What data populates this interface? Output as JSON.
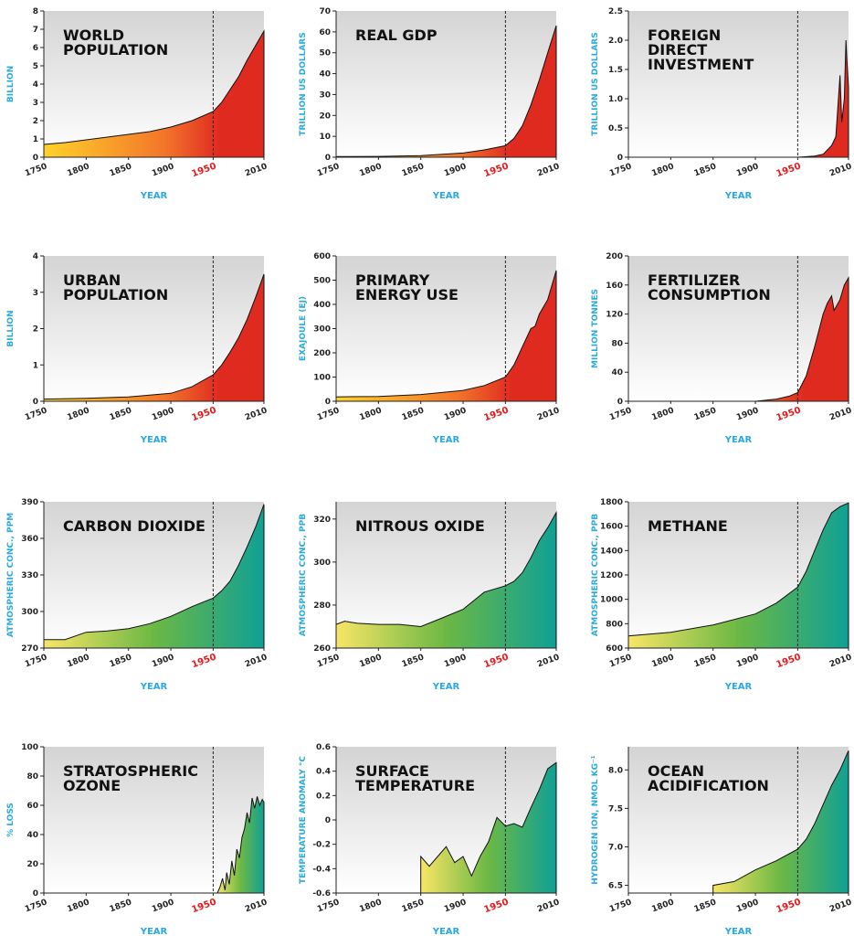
{
  "colors": {
    "axis_text": "#29a9df",
    "highlight_year": "#e11a1a",
    "bg_light": "#ffffff",
    "bg_dark": "#d4d4d4",
    "socio_start": "#ffd22a",
    "socio_mid": "#f3752a",
    "socio_end": "#df2a20",
    "earth_start": "#f8e566",
    "earth_mid": "#6bb844",
    "earth_end": "#10a095"
  },
  "shared": {
    "xlabel": "YEAR",
    "x_ticks": [
      "1750",
      "1800",
      "1850",
      "1900",
      "1950",
      "2010"
    ],
    "marker_year": 1950,
    "xlim": [
      1750,
      2010
    ]
  },
  "chart_data": [
    {
      "type": "area",
      "panel": "socio",
      "title_lines": [
        "WORLD",
        "POPULATION"
      ],
      "ylabel": "BILLION",
      "ylim": [
        0,
        8
      ],
      "y_ticks": [
        "0",
        "1",
        "2",
        "3",
        "4",
        "5",
        "6",
        "7",
        "8"
      ],
      "x": [
        1750,
        1775,
        1800,
        1825,
        1850,
        1875,
        1900,
        1925,
        1950,
        1960,
        1970,
        1980,
        1990,
        2000,
        2010
      ],
      "y": [
        0.7,
        0.8,
        0.95,
        1.1,
        1.25,
        1.4,
        1.65,
        2.0,
        2.5,
        3.0,
        3.7,
        4.4,
        5.3,
        6.1,
        6.9
      ]
    },
    {
      "type": "area",
      "panel": "socio",
      "title_lines": [
        "REAL GDP"
      ],
      "ylabel": "TRILLION US DOLLARS",
      "ylim": [
        0,
        70
      ],
      "y_ticks": [
        "0",
        "10",
        "20",
        "30",
        "40",
        "50",
        "60",
        "70"
      ],
      "x": [
        1750,
        1800,
        1850,
        1900,
        1925,
        1950,
        1960,
        1970,
        1980,
        1990,
        2000,
        2010
      ],
      "y": [
        0.3,
        0.4,
        0.8,
        2.0,
        3.5,
        5.5,
        9.0,
        15.0,
        25.0,
        37.0,
        50.0,
        63.0
      ]
    },
    {
      "type": "area",
      "panel": "socio",
      "title_lines": [
        "FOREIGN",
        "DIRECT",
        "INVESTMENT"
      ],
      "ylabel": "TRILLION US DOLLARS",
      "ylim": [
        0,
        2.5
      ],
      "y_ticks": [
        "0",
        "0.5",
        "1.0",
        "1.5",
        "2.0",
        "2.5"
      ],
      "x": [
        1750,
        1950,
        1970,
        1980,
        1990,
        1995,
        2000,
        2002,
        2005,
        2007,
        2008,
        2010
      ],
      "y": [
        0,
        0,
        0.02,
        0.05,
        0.2,
        0.35,
        1.4,
        0.6,
        1.0,
        2.0,
        1.7,
        1.2
      ]
    },
    {
      "type": "area",
      "panel": "socio",
      "title_lines": [
        "URBAN",
        "POPULATION"
      ],
      "ylabel": "BILLION",
      "ylim": [
        0,
        4
      ],
      "y_ticks": [
        "0",
        "1",
        "2",
        "3",
        "4"
      ],
      "x": [
        1750,
        1800,
        1850,
        1900,
        1925,
        1950,
        1960,
        1970,
        1980,
        1990,
        2000,
        2010
      ],
      "y": [
        0.06,
        0.08,
        0.12,
        0.22,
        0.4,
        0.73,
        1.0,
        1.35,
        1.75,
        2.25,
        2.85,
        3.5
      ]
    },
    {
      "type": "area",
      "panel": "socio",
      "title_lines": [
        "PRIMARY",
        "ENERGY USE"
      ],
      "ylabel": "EXAJOULE (EJ)",
      "ylim": [
        0,
        600
      ],
      "y_ticks": [
        "0",
        "100",
        "200",
        "300",
        "400",
        "500",
        "600"
      ],
      "x": [
        1750,
        1800,
        1850,
        1900,
        1925,
        1950,
        1960,
        1970,
        1980,
        1985,
        1990,
        2000,
        2010
      ],
      "y": [
        18,
        20,
        28,
        45,
        65,
        100,
        150,
        225,
        300,
        310,
        360,
        420,
        540
      ]
    },
    {
      "type": "area",
      "panel": "socio",
      "title_lines": [
        "FERTILIZER",
        "CONSUMPTION"
      ],
      "ylabel": "MILLION TONNES",
      "ylim": [
        0,
        200
      ],
      "y_ticks": [
        "0",
        "40",
        "80",
        "120",
        "160",
        "200"
      ],
      "x": [
        1750,
        1900,
        1925,
        1940,
        1950,
        1960,
        1970,
        1980,
        1985,
        1990,
        1993,
        2000,
        2005,
        2010
      ],
      "y": [
        0,
        0,
        3,
        7,
        12,
        35,
        75,
        120,
        135,
        145,
        125,
        140,
        160,
        170
      ]
    },
    {
      "type": "area",
      "panel": "earth",
      "title_lines": [
        "CARBON DIOXIDE"
      ],
      "ylabel": "ATMOSPHERIC CONC., PPM",
      "ylim": [
        270,
        390
      ],
      "y_ticks": [
        "270",
        "300",
        "330",
        "360",
        "390"
      ],
      "x": [
        1750,
        1775,
        1800,
        1825,
        1850,
        1875,
        1900,
        1925,
        1950,
        1960,
        1970,
        1980,
        1990,
        2000,
        2010
      ],
      "y": [
        277,
        277,
        283,
        284,
        286,
        290,
        296,
        304,
        311,
        317,
        325,
        338,
        353,
        369,
        388
      ]
    },
    {
      "type": "area",
      "panel": "earth",
      "title_lines": [
        "NITROUS OXIDE"
      ],
      "ylabel": "ATMOSPHERIC CONC., PPB",
      "ylim": [
        260,
        328
      ],
      "y_ticks": [
        "260",
        "280",
        "300",
        "320"
      ],
      "x": [
        1750,
        1760,
        1775,
        1800,
        1825,
        1850,
        1875,
        1900,
        1925,
        1950,
        1960,
        1970,
        1980,
        1990,
        2000,
        2010
      ],
      "y": [
        271,
        272.5,
        271.5,
        271,
        271,
        270,
        274,
        278,
        286,
        289,
        291,
        295,
        302,
        310,
        316,
        323
      ]
    },
    {
      "type": "area",
      "panel": "earth",
      "title_lines": [
        "METHANE"
      ],
      "ylabel": "ATMOSPHERIC CONC., PPB",
      "ylim": [
        600,
        1800
      ],
      "y_ticks": [
        "600",
        "800",
        "1000",
        "1200",
        "1400",
        "1600",
        "1800"
      ],
      "x": [
        1750,
        1800,
        1850,
        1900,
        1925,
        1950,
        1960,
        1970,
        1980,
        1990,
        2000,
        2010
      ],
      "y": [
        700,
        730,
        790,
        880,
        970,
        1100,
        1230,
        1400,
        1570,
        1710,
        1760,
        1790
      ]
    },
    {
      "type": "area",
      "panel": "earth",
      "title_lines": [
        "STRATOSPHERIC",
        "OZONE"
      ],
      "ylabel": "% LOSS",
      "ylim": [
        0,
        100
      ],
      "y_ticks": [
        "0",
        "20",
        "40",
        "60",
        "80",
        "100"
      ],
      "x": [
        1955,
        1958,
        1961,
        1964,
        1966,
        1969,
        1972,
        1975,
        1978,
        1981,
        1984,
        1987,
        1990,
        1993,
        1996,
        1999,
        2002,
        2005,
        2008,
        2010
      ],
      "y": [
        0,
        4,
        10,
        2,
        14,
        6,
        22,
        12,
        30,
        24,
        38,
        44,
        55,
        48,
        65,
        58,
        66,
        60,
        64,
        62
      ]
    },
    {
      "type": "area",
      "panel": "earth",
      "title_lines": [
        "SURFACE",
        "TEMPERATURE"
      ],
      "ylabel": "TEMPERATURE ANOMALY °C",
      "ylim": [
        -0.6,
        0.6
      ],
      "y_ticks": [
        "-0.6",
        "-0.4",
        "-0.2",
        "0",
        "0.2",
        "0.4",
        "0.6"
      ],
      "x": [
        1850,
        1860,
        1870,
        1880,
        1890,
        1900,
        1910,
        1920,
        1930,
        1940,
        1950,
        1960,
        1970,
        1980,
        1990,
        2000,
        2010
      ],
      "y": [
        -0.3,
        -0.38,
        -0.3,
        -0.22,
        -0.35,
        -0.3,
        -0.46,
        -0.3,
        -0.18,
        0.02,
        -0.05,
        -0.03,
        -0.06,
        0.1,
        0.25,
        0.42,
        0.47
      ]
    },
    {
      "type": "area",
      "panel": "earth",
      "title_lines": [
        "OCEAN",
        "ACIDIFICATION"
      ],
      "ylabel": "HYDROGEN ION, NMOL KG⁻¹",
      "ylim": [
        6.4,
        8.3
      ],
      "y_ticks": [
        "6.5",
        "7.0",
        "7.5",
        "8.0"
      ],
      "x": [
        1850,
        1875,
        1900,
        1925,
        1950,
        1960,
        1970,
        1980,
        1990,
        2000,
        2010
      ],
      "y": [
        6.5,
        6.55,
        6.7,
        6.82,
        6.97,
        7.1,
        7.3,
        7.55,
        7.8,
        8.0,
        8.25
      ]
    }
  ]
}
